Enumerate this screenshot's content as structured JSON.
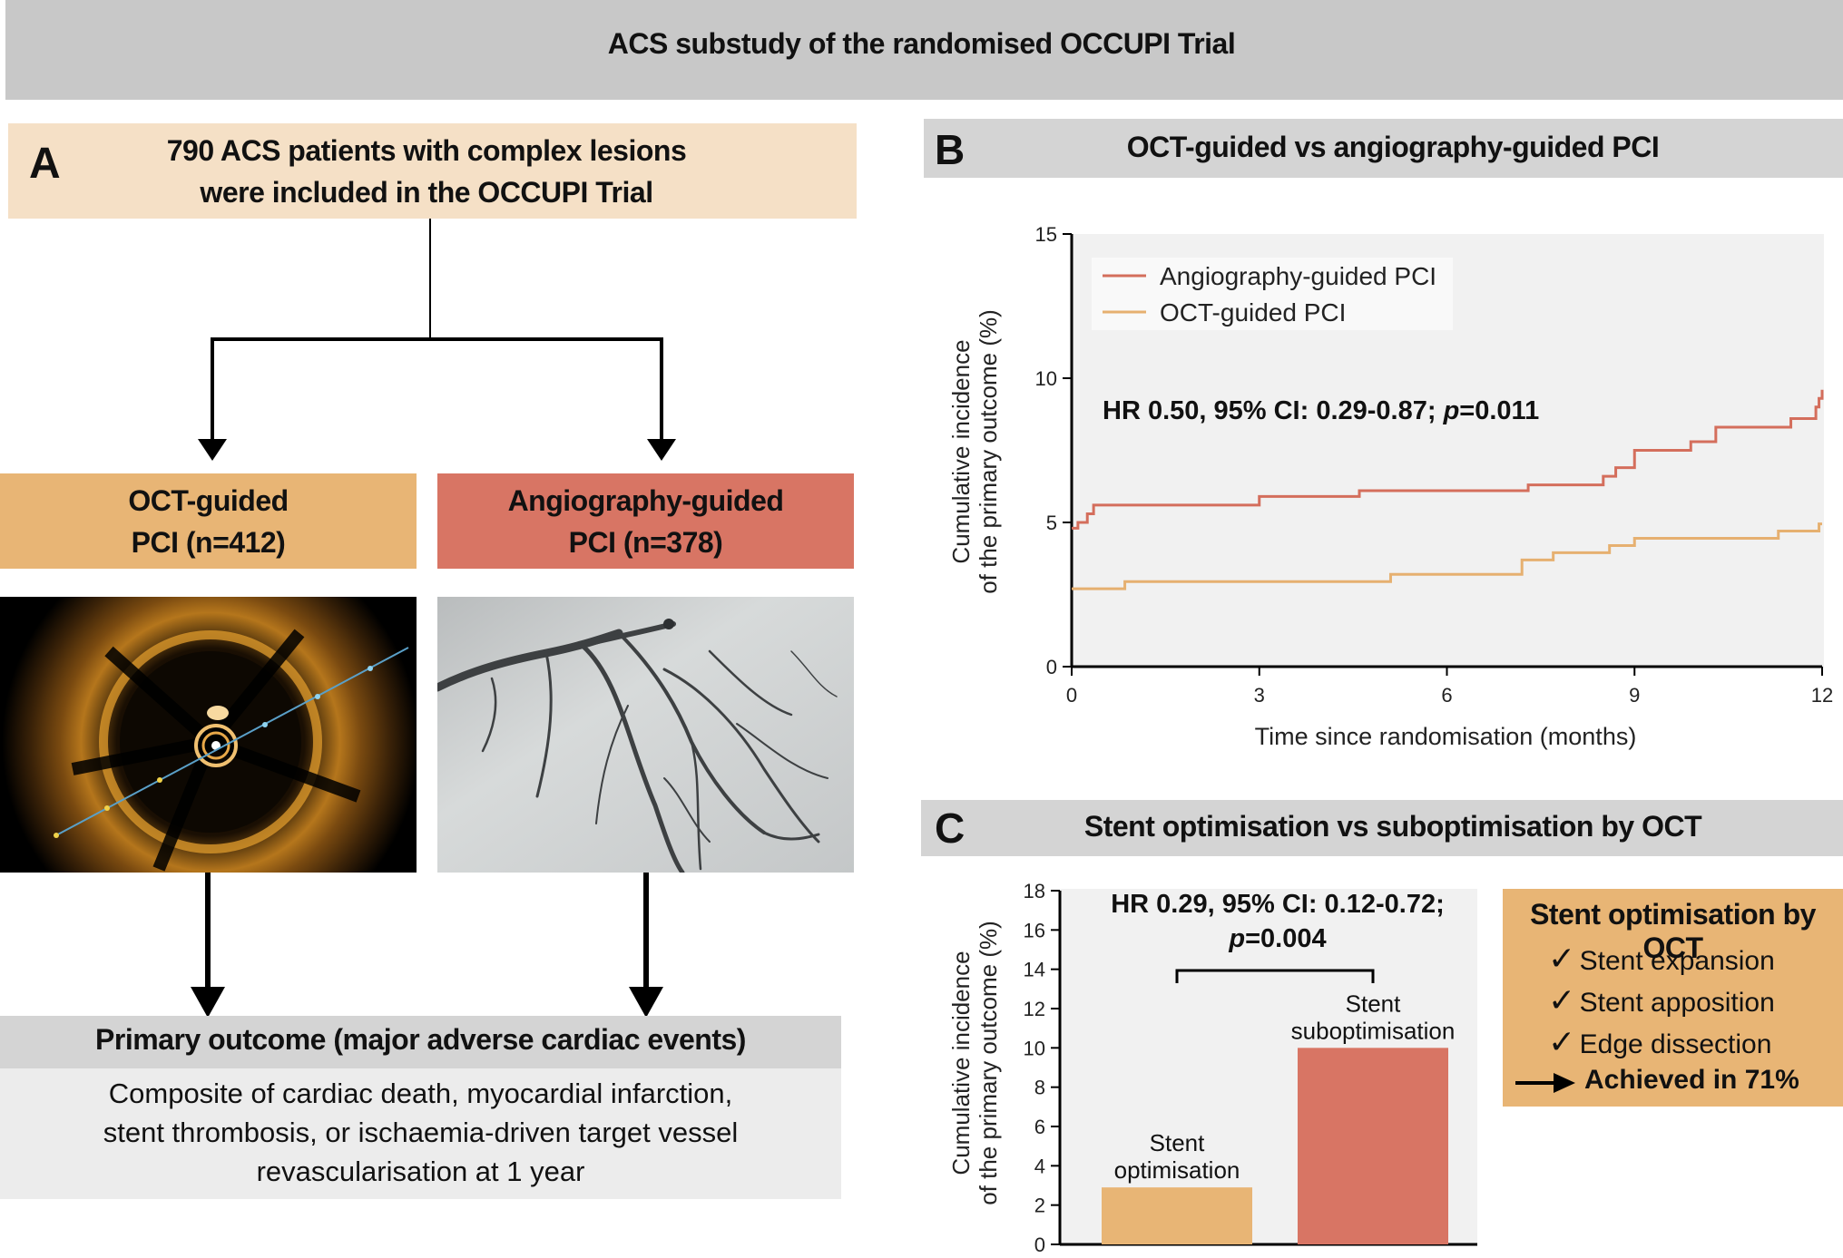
{
  "header": {
    "title": "ACS substudy of the randomised OCCUPI Trial"
  },
  "panel_a": {
    "letter": "A",
    "enrolment_line1": "790 ACS patients with complex lesions",
    "enrolment_line2": "were included in the OCCUPI Trial",
    "oct_arm_line1": "OCT-guided",
    "oct_arm_line2": "PCI (n=412)",
    "angio_arm_line1": "Angiography-guided",
    "angio_arm_line2": "PCI (n=378)",
    "outcome_title": "Primary outcome (major adverse cardiac events)",
    "outcome_line1": "Composite of cardiac death, myocardial infarction,",
    "outcome_line2": "stent thrombosis, or ischaemia-driven target vessel",
    "outcome_line3": "revascularisation at 1 year"
  },
  "panel_b": {
    "letter": "B",
    "title": "OCT-guided vs angiography-guided PCI",
    "hr_text": "HR 0.50, 95% CI: 0.29-0.87; ",
    "p_label": "p",
    "p_value": "=0.011"
  },
  "panel_c": {
    "letter": "C",
    "title": "Stent optimisation vs suboptimisation by OCT",
    "hr_text": "HR 0.29, 95% CI: 0.12-0.72;",
    "p_label": "p",
    "p_value": "=0.004",
    "box_title": "Stent optimisation by OCT",
    "check_mark": "✓",
    "criteria": [
      "Stent expansion",
      "Stent apposition",
      "Edge dissection"
    ],
    "achieved": "Achieved in 71%"
  },
  "colors": {
    "oct": "#e8b575",
    "angio": "#d87564",
    "oct_line": "#e6b070",
    "angio_line": "#d46e5c"
  },
  "chart_data": [
    {
      "type": "line",
      "title": "OCT-guided vs angiography-guided PCI",
      "xlabel": "Time since randomisation (months)",
      "ylabel_line1": "Cumulative incidence",
      "ylabel_line2": "of the primary outcome (%)",
      "xlim": [
        0,
        12
      ],
      "ylim": [
        0,
        15
      ],
      "xticks": [
        0,
        3,
        6,
        9,
        12
      ],
      "yticks": [
        0,
        5,
        10,
        15
      ],
      "legend_position": "top-left",
      "series": [
        {
          "name": "Angiography-guided PCI",
          "color": "#d46e5c",
          "step": true,
          "points": [
            [
              0,
              4.8
            ],
            [
              0.1,
              5.0
            ],
            [
              0.25,
              5.3
            ],
            [
              0.35,
              5.6
            ],
            [
              3.0,
              5.9
            ],
            [
              4.6,
              6.1
            ],
            [
              7.3,
              6.3
            ],
            [
              8.5,
              6.6
            ],
            [
              8.7,
              6.9
            ],
            [
              9.0,
              7.5
            ],
            [
              9.9,
              7.8
            ],
            [
              10.3,
              8.3
            ],
            [
              11.5,
              8.6
            ],
            [
              11.9,
              9.0
            ],
            [
              11.95,
              9.3
            ],
            [
              12,
              9.6
            ]
          ]
        },
        {
          "name": "OCT-guided PCI",
          "color": "#e6b070",
          "step": true,
          "points": [
            [
              0,
              2.7
            ],
            [
              0.85,
              2.95
            ],
            [
              5.1,
              3.2
            ],
            [
              7.2,
              3.7
            ],
            [
              7.7,
              3.95
            ],
            [
              8.6,
              4.2
            ],
            [
              9.0,
              4.45
            ],
            [
              11.3,
              4.7
            ],
            [
              11.95,
              4.95
            ],
            [
              12,
              4.95
            ]
          ]
        }
      ]
    },
    {
      "type": "bar",
      "ylabel_line1": "Cumulative incidence",
      "ylabel_line2": "of the primary outcome (%)",
      "ylim": [
        0,
        18
      ],
      "yticks": [
        0,
        2,
        4,
        6,
        8,
        10,
        12,
        14,
        16,
        18
      ],
      "categories": [
        {
          "line1": "Stent",
          "line2": "optimisation"
        },
        {
          "line1": "Stent",
          "line2": "suboptimisation"
        }
      ],
      "values": [
        2.9,
        10.0
      ],
      "colors": [
        "#e8b575",
        "#d87564"
      ]
    }
  ]
}
